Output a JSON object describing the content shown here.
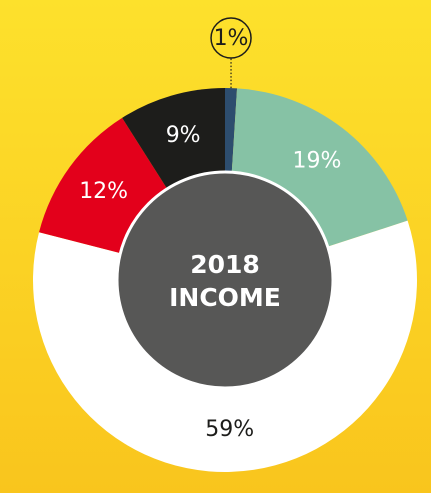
{
  "chart_data": {
    "type": "donut",
    "center_lines": [
      "2018",
      "INCOME"
    ],
    "categories": [
      null,
      null,
      null,
      null,
      null
    ],
    "values": [
      1,
      19,
      59,
      12,
      9
    ],
    "value_labels": [
      "1%",
      "19%",
      "59%",
      "12%",
      "9%"
    ],
    "colors": [
      "#2d4d6e",
      "#86c2a5",
      "#ffffff",
      "#e3001b",
      "#1d1d1b"
    ],
    "inner_color": "#575756"
  }
}
